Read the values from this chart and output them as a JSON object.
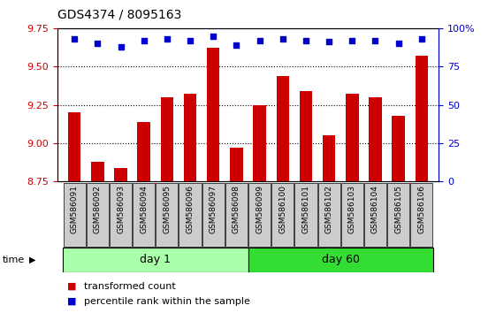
{
  "title": "GDS4374 / 8095163",
  "samples": [
    "GSM586091",
    "GSM586092",
    "GSM586093",
    "GSM586094",
    "GSM586095",
    "GSM586096",
    "GSM586097",
    "GSM586098",
    "GSM586099",
    "GSM586100",
    "GSM586101",
    "GSM586102",
    "GSM586103",
    "GSM586104",
    "GSM586105",
    "GSM586106"
  ],
  "transformed_counts": [
    9.2,
    8.88,
    8.84,
    9.14,
    9.3,
    9.32,
    9.62,
    8.97,
    9.25,
    9.44,
    9.34,
    9.05,
    9.32,
    9.3,
    9.18,
    9.57
  ],
  "percentile_ranks": [
    93,
    90,
    88,
    92,
    93,
    92,
    95,
    89,
    92,
    93,
    92,
    91,
    92,
    92,
    90,
    93
  ],
  "day1_count": 8,
  "day60_count": 8,
  "ylim_left": [
    8.75,
    9.75
  ],
  "ylim_right": [
    0,
    100
  ],
  "bar_color": "#cc0000",
  "dot_color": "#0000cc",
  "grid_color": "#000000",
  "bar_width": 0.55,
  "bg_color": "#ffffff",
  "tick_bg": "#cccccc",
  "day1_bg": "#aaffaa",
  "day60_bg": "#33dd33",
  "label_transformed": "transformed count",
  "label_percentile": "percentile rank within the sample",
  "left_ticks": [
    8.75,
    9.0,
    9.25,
    9.5,
    9.75
  ],
  "right_ticks": [
    0,
    25,
    50,
    75,
    100
  ],
  "grid_ticks": [
    9.0,
    9.25,
    9.5
  ]
}
